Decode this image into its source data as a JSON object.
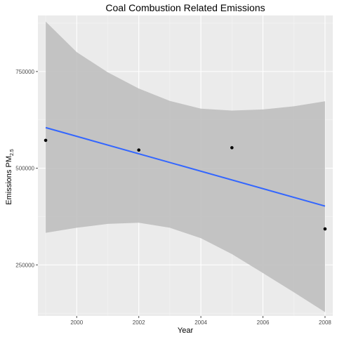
{
  "chart_data": {
    "type": "scatter",
    "title": "Coal Combustion Related Emissions",
    "xlabel": "Year",
    "ylabel_main": "Emissions PM",
    "ylabel_sub": "2.5",
    "xlim": [
      1998.75,
      2008.25
    ],
    "ylim": [
      118000,
      895000
    ],
    "x_ticks": [
      2000,
      2002,
      2004,
      2006,
      2008
    ],
    "y_ticks": [
      250000,
      500000,
      750000
    ],
    "y_tick_labels": [
      "250000",
      "500000",
      "750000"
    ],
    "grid": true,
    "points": [
      {
        "x": 1999,
        "y": 572000
      },
      {
        "x": 2002,
        "y": 547000
      },
      {
        "x": 2005,
        "y": 553000
      },
      {
        "x": 2008,
        "y": 343000
      }
    ],
    "trend_line": {
      "x": [
        1999,
        2008
      ],
      "y": [
        605000,
        402000
      ]
    },
    "confidence_band": {
      "x": [
        1999,
        2000,
        2001,
        2002,
        2003,
        2004,
        2005,
        2006,
        2007,
        2008
      ],
      "upper": [
        879000,
        800000,
        748000,
        706000,
        674000,
        654000,
        649000,
        652000,
        660000,
        673000
      ],
      "lower": [
        333000,
        346000,
        356000,
        359000,
        346000,
        319000,
        278000,
        229000,
        179000,
        128000
      ]
    },
    "colors": {
      "panel": "#ebebeb",
      "grid_major": "#ffffff",
      "grid_minor": "#f5f5f5",
      "band": "#bfbfbf",
      "line": "#3366ff",
      "point": "#000000",
      "tick": "#4d4d4d"
    }
  }
}
